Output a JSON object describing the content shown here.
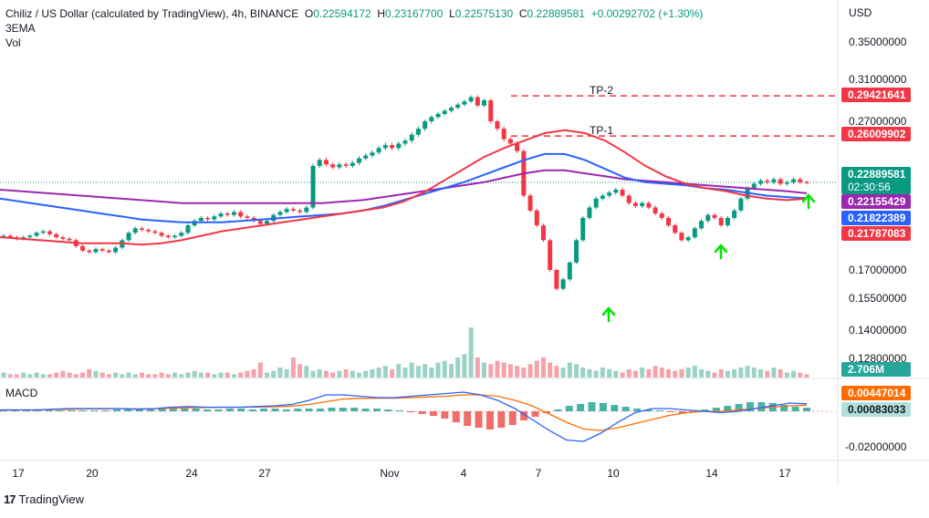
{
  "header": {
    "symbol": "Chiliz / US Dollar (calculated by TradingView), 4h, BINANCE",
    "o_label": "O",
    "o": "0.22594172",
    "h_label": "H",
    "h": "0.23167700",
    "l_label": "L",
    "l": "0.22575130",
    "c_label": "C",
    "c": "0.22889581",
    "chg": "+0.00292702 (+1.30%)",
    "ind1": "3EMA",
    "ind2": "Vol",
    "macd": "MACD"
  },
  "currency": "USD",
  "footer": {
    "brand": "TradingView",
    "logo": "17"
  },
  "colors": {
    "up": "#089981",
    "down": "#f23645",
    "ema_fast": "#f23645",
    "ema_mid": "#2962ff",
    "ema_slow": "#9c27b0",
    "macd_line": "#2962ff",
    "signal_line": "#ff6d00",
    "arrow": "#00e600",
    "tp": "#f23645"
  },
  "chart_data": {
    "type": "line",
    "title": "Chiliz / US Dollar (calculated by TradingView), 4h, BINANCE",
    "price_ticks": [
      "0.35000000",
      "0.31000000",
      "0.27000000",
      "0.17000000",
      "0.15500000",
      "0.14000000",
      "0.12800000"
    ],
    "macd_ticks": [
      "-0.02000000"
    ],
    "x_ticks": [
      "17",
      "20",
      "24",
      "27",
      "Nov",
      "4",
      "7",
      "10",
      "14",
      "17"
    ],
    "badges": [
      {
        "label": "0.29421641",
        "color": "#f23645"
      },
      {
        "label": "0.26009902",
        "color": "#f23645"
      },
      {
        "label": "0.22889581",
        "sub": "02:30:56",
        "color": "#089981"
      },
      {
        "label": "0.22155429",
        "color": "#9c27b0"
      },
      {
        "label": "0.21822389",
        "color": "#2962ff"
      },
      {
        "label": "0.21787083",
        "color": "#f23645"
      },
      {
        "label": "2.706M",
        "color": "#26a69a"
      },
      {
        "label": "0.00447014",
        "color": "#ff6d00"
      },
      {
        "label": "0.00083033",
        "color": "#b2dfdb"
      }
    ],
    "annotations": [
      {
        "text": "TP-2",
        "price": 0.29421641
      },
      {
        "text": "TP-1",
        "price": 0.26009902
      }
    ],
    "closes": [
      0.193,
      0.192,
      0.191,
      0.192,
      0.193,
      0.195,
      0.196,
      0.194,
      0.192,
      0.191,
      0.19,
      0.186,
      0.183,
      0.182,
      0.184,
      0.183,
      0.182,
      0.185,
      0.19,
      0.195,
      0.198,
      0.197,
      0.196,
      0.195,
      0.193,
      0.192,
      0.193,
      0.195,
      0.2,
      0.203,
      0.205,
      0.204,
      0.206,
      0.208,
      0.207,
      0.209,
      0.206,
      0.205,
      0.203,
      0.201,
      0.203,
      0.207,
      0.209,
      0.211,
      0.21,
      0.209,
      0.212,
      0.24,
      0.244,
      0.241,
      0.239,
      0.241,
      0.24,
      0.242,
      0.245,
      0.247,
      0.249,
      0.252,
      0.254,
      0.252,
      0.255,
      0.257,
      0.261,
      0.265,
      0.27,
      0.274,
      0.277,
      0.28,
      0.283,
      0.286,
      0.289,
      0.293,
      0.285,
      0.29,
      0.27,
      0.265,
      0.258,
      0.255,
      0.25,
      0.22,
      0.21,
      0.2,
      0.19,
      0.17,
      0.16,
      0.165,
      0.175,
      0.19,
      0.205,
      0.212,
      0.218,
      0.22,
      0.222,
      0.224,
      0.22,
      0.215,
      0.213,
      0.215,
      0.212,
      0.208,
      0.205,
      0.2,
      0.195,
      0.19,
      0.192,
      0.198,
      0.203,
      0.207,
      0.205,
      0.2,
      0.205,
      0.21,
      0.218,
      0.225,
      0.228,
      0.23,
      0.229,
      0.231,
      0.228,
      0.229,
      0.231,
      0.229,
      0.2289
    ],
    "ema_fast": [
      0.192,
      0.191,
      0.19,
      0.189,
      0.188,
      0.188,
      0.188,
      0.187,
      0.188,
      0.19,
      0.193,
      0.196,
      0.198,
      0.2,
      0.202,
      0.204,
      0.206,
      0.208,
      0.21,
      0.212,
      0.216,
      0.222,
      0.23,
      0.238,
      0.246,
      0.252,
      0.257,
      0.262,
      0.264,
      0.262,
      0.257,
      0.249,
      0.24,
      0.233,
      0.228,
      0.225,
      0.223,
      0.22,
      0.218,
      0.217,
      0.2179
    ],
    "ema_mid": [
      0.218,
      0.216,
      0.214,
      0.212,
      0.21,
      0.208,
      0.206,
      0.204,
      0.203,
      0.202,
      0.202,
      0.202,
      0.203,
      0.204,
      0.205,
      0.206,
      0.207,
      0.208,
      0.21,
      0.213,
      0.217,
      0.221,
      0.225,
      0.229,
      0.234,
      0.239,
      0.244,
      0.248,
      0.248,
      0.244,
      0.238,
      0.232,
      0.229,
      0.228,
      0.227,
      0.225,
      0.224,
      0.222,
      0.22,
      0.219,
      0.2182
    ],
    "ema_slow": [
      0.224,
      0.223,
      0.222,
      0.221,
      0.22,
      0.219,
      0.218,
      0.217,
      0.216,
      0.215,
      0.215,
      0.215,
      0.215,
      0.215,
      0.215,
      0.215,
      0.215,
      0.216,
      0.217,
      0.219,
      0.221,
      0.223,
      0.225,
      0.227,
      0.229,
      0.232,
      0.235,
      0.237,
      0.237,
      0.235,
      0.233,
      0.231,
      0.23,
      0.229,
      0.228,
      0.227,
      0.226,
      0.225,
      0.224,
      0.223,
      0.2216
    ],
    "volume": [
      3,
      2,
      2,
      3,
      2,
      3,
      2,
      2,
      3,
      4,
      3,
      2,
      3,
      5,
      4,
      3,
      2,
      3,
      2,
      3,
      2,
      3,
      2,
      2,
      3,
      2,
      3,
      2,
      3,
      4,
      3,
      3,
      2,
      3,
      3,
      2,
      3,
      4,
      5,
      9,
      3,
      4,
      6,
      5,
      12,
      8,
      7,
      4,
      5,
      4,
      3,
      4,
      5,
      4,
      3,
      4,
      5,
      6,
      7,
      5,
      8,
      6,
      9,
      7,
      8,
      6,
      9,
      10,
      8,
      12,
      14,
      30,
      12,
      9,
      8,
      10,
      9,
      8,
      7,
      6,
      8,
      10,
      12,
      9,
      7,
      6,
      9,
      8,
      6,
      5,
      4,
      6,
      5,
      4,
      3,
      5,
      4,
      6,
      5,
      7,
      6,
      5,
      4,
      5,
      6,
      7,
      5,
      4,
      3,
      5,
      4,
      5,
      6,
      7,
      6,
      5,
      4,
      6,
      5,
      3,
      4,
      3,
      2
    ],
    "macd_hist": [
      1,
      1,
      1,
      1,
      1,
      1,
      1,
      1,
      1,
      1,
      2,
      2,
      3,
      3,
      3,
      3,
      3,
      3,
      2,
      2,
      3,
      3,
      2,
      3,
      3,
      2,
      3,
      3,
      3,
      4,
      4,
      4,
      3,
      3,
      2,
      1,
      -1,
      -3,
      -5,
      -8,
      -12,
      -16,
      -18,
      -20,
      -18,
      -15,
      -10,
      -6,
      -2,
      2,
      6,
      8,
      10,
      9,
      7,
      5,
      3,
      2,
      1,
      -1,
      -2,
      -1,
      2,
      4,
      6,
      8,
      10,
      10,
      9,
      7,
      5,
      4
    ],
    "macd_line": [
      0.001,
      0.001,
      0.001,
      0.0015,
      0.002,
      0.002,
      0.002,
      0.002,
      0.0015,
      0.002,
      0.003,
      0.0035,
      0.003,
      0.003,
      0.003,
      0.0035,
      0.004,
      0.005,
      0.008,
      0.012,
      0.012,
      0.011,
      0.01,
      0.01,
      0.011,
      0.012,
      0.013,
      0.014,
      0.012,
      0.008,
      0.002,
      -0.006,
      -0.014,
      -0.021,
      -0.022,
      -0.016,
      -0.008,
      -0.001,
      0.002,
      0.002,
      0.001,
      0.0,
      -0.001,
      0.0,
      0.002,
      0.004,
      0.006,
      0.0055
    ],
    "signal_line": [
      0.001,
      0.001,
      0.001,
      0.0012,
      0.0015,
      0.0017,
      0.0018,
      0.0019,
      0.0018,
      0.0019,
      0.0022,
      0.0026,
      0.0028,
      0.0029,
      0.003,
      0.0031,
      0.0033,
      0.0038,
      0.005,
      0.007,
      0.009,
      0.0095,
      0.0096,
      0.0096,
      0.01,
      0.0105,
      0.011,
      0.012,
      0.012,
      0.011,
      0.008,
      0.004,
      -0.002,
      -0.008,
      -0.013,
      -0.014,
      -0.012,
      -0.009,
      -0.006,
      -0.003,
      -0.001,
      0.0,
      0.0,
      0.001,
      0.002,
      0.003,
      0.004,
      0.0045
    ]
  }
}
